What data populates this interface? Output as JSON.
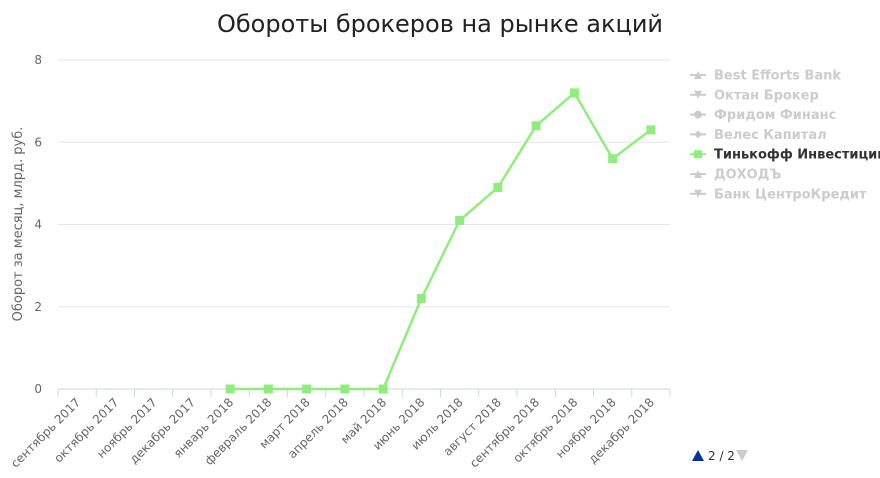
{
  "chart_data": {
    "type": "line",
    "title": "Обороты брокеров на рынке акций",
    "ylabel": "Оборот за месяц, млрд. руб.",
    "ylim": [
      0,
      8
    ],
    "yticks": [
      "0",
      "2",
      "4",
      "6",
      "8"
    ],
    "grid": true,
    "legend_position": "right",
    "categories": [
      "сентябрь 2017",
      "октябрь 2017",
      "ноябрь 2017",
      "декабрь 2017",
      "январь 2018",
      "февраль 2018",
      "март 2018",
      "апрель 2018",
      "май 2018",
      "июнь 2018",
      "июль 2018",
      "август 2018",
      "сентябрь 2018",
      "октябрь 2018",
      "ноябрь 2018",
      "декабрь 2018"
    ],
    "series": [
      {
        "name": "Best Efforts Bank",
        "visible": false,
        "marker": "triangle"
      },
      {
        "name": "Октан Брокер",
        "visible": false,
        "marker": "triangle-down"
      },
      {
        "name": "Фридом Финанс",
        "visible": false,
        "marker": "circle"
      },
      {
        "name": "Велес Капитал",
        "visible": false,
        "marker": "diamond"
      },
      {
        "name": "Тинькофф Инвестиции",
        "visible": true,
        "marker": "square",
        "color": "#90ed7d",
        "values": [
          null,
          null,
          null,
          null,
          0,
          0,
          0,
          0,
          0,
          2.2,
          4.1,
          4.9,
          6.4,
          7.2,
          5.6,
          6.3
        ]
      },
      {
        "name": "ДОХОДЪ",
        "visible": false,
        "marker": "triangle"
      },
      {
        "name": "Банк ЦентроКредит",
        "visible": false,
        "marker": "triangle-down"
      }
    ],
    "colors": {
      "line": "#90ed7d",
      "hidden_legend": "#cccccc",
      "pager_arrow": "#003399",
      "pager_arrow_disabled": "#cccccc"
    }
  },
  "legend_pager": {
    "text": "2 / 2"
  }
}
